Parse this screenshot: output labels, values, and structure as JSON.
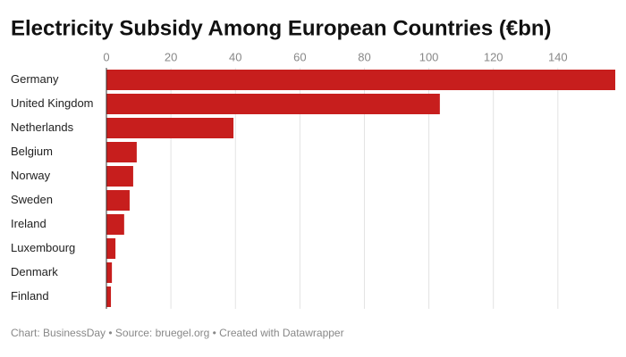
{
  "chart_data": {
    "type": "bar",
    "orientation": "horizontal",
    "title": "Electricity Subsidy Among European Countries (€bn)",
    "categories": [
      "Germany",
      "United Kingdom",
      "Netherlands",
      "Belgium",
      "Norway",
      "Sweden",
      "Ireland",
      "Luxembourg",
      "Denmark",
      "Finland"
    ],
    "values": [
      157.8,
      103.4,
      39.4,
      9.4,
      8.3,
      7.2,
      5.5,
      2.8,
      1.7,
      1.4
    ],
    "color": "#c71e1d",
    "xlim": [
      0,
      157.8
    ],
    "xticks": [
      0,
      20,
      40,
      60,
      80,
      100,
      120,
      140
    ],
    "grid": true,
    "footer": "Chart: BusinessDay • Source: bruegel.org • Created with Datawrapper"
  }
}
